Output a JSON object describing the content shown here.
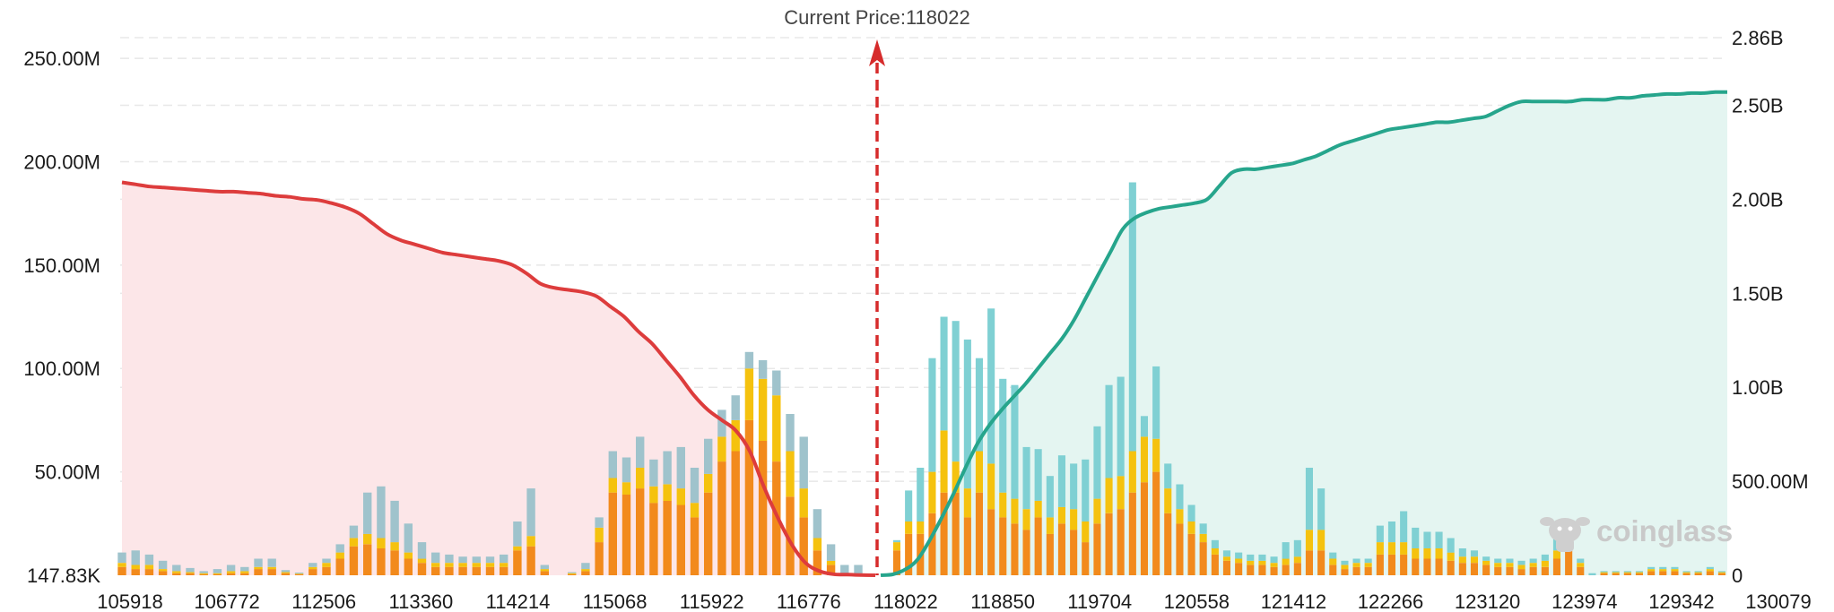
{
  "chart_data": {
    "type": "bar",
    "title": "Current Price:118022",
    "current_price": 118022,
    "x_tick_labels": [
      "105918",
      "106772",
      "112506",
      "113360",
      "114214",
      "115068",
      "115922",
      "116776",
      "118022",
      "118850",
      "119704",
      "120558",
      "121412",
      "122266",
      "123120",
      "123974",
      "129342",
      "130079"
    ],
    "y_left": {
      "tick_labels": [
        "147.83K",
        "50.00M",
        "100.00M",
        "150.00M",
        "200.00M",
        "250.00M"
      ],
      "ylim": [
        0,
        260000000
      ]
    },
    "y_right": {
      "tick_labels": [
        "0",
        "500.00M",
        "1.00B",
        "1.50B",
        "2.00B",
        "2.50B",
        "2.86B"
      ],
      "ylim": [
        0,
        2860000000
      ]
    },
    "grid": true,
    "colors": {
      "tier1": "#f28a1c",
      "tier2": "#f5c20e",
      "tier3": "#7fd0d3",
      "tier3_left": "#9fc3cc",
      "short_curve": "#dd3c3c",
      "short_fill": "#fce6e8",
      "long_curve": "#26a58c",
      "long_fill": "#e4f5f1",
      "marker": "#d62b2b"
    },
    "bar_series_names": [
      "tier1",
      "tier2",
      "tier3"
    ],
    "left_bars": {
      "tier1": [
        4,
        3,
        3,
        2,
        1,
        1,
        0.5,
        0.5,
        1,
        1,
        3,
        3,
        1,
        0.5,
        3,
        4,
        8,
        14,
        15,
        13,
        12,
        8,
        6,
        4,
        4,
        4,
        4,
        4,
        4,
        12,
        14,
        2,
        0,
        0.5,
        2,
        16,
        40,
        39,
        42,
        35,
        36,
        34,
        28,
        40,
        55,
        60,
        75,
        65,
        55,
        38,
        28,
        12,
        5,
        0,
        0
      ],
      "tier2": [
        2,
        2,
        2,
        1,
        1,
        0.5,
        0.5,
        0.5,
        1,
        1,
        1,
        1,
        0.5,
        0.3,
        1,
        2,
        3,
        4,
        5,
        5,
        4,
        3,
        2,
        2,
        2,
        2,
        2,
        2,
        2,
        2,
        5,
        1,
        0,
        0.5,
        1,
        7,
        7,
        6,
        10,
        8,
        8,
        8,
        7,
        9,
        12,
        15,
        25,
        30,
        32,
        22,
        14,
        6,
        2,
        0,
        0
      ],
      "tier3": [
        5,
        7,
        5,
        4,
        3,
        2,
        1,
        2,
        3,
        2,
        4,
        4,
        1,
        0.5,
        2,
        2,
        4,
        6,
        20,
        25,
        20,
        14,
        8,
        5,
        4,
        3,
        3,
        3,
        4,
        12,
        23,
        2,
        0,
        0.5,
        3,
        5,
        13,
        12,
        15,
        13,
        16,
        20,
        17,
        17,
        13,
        12,
        8,
        9,
        12,
        18,
        25,
        14,
        8,
        5,
        5
      ]
    },
    "right_bars": {
      "tier1": [
        12,
        20,
        20,
        30,
        40,
        40,
        28,
        40,
        32,
        28,
        25,
        22,
        28,
        20,
        25,
        22,
        16,
        25,
        30,
        32,
        40,
        45,
        50,
        30,
        25,
        20,
        16,
        10,
        7,
        6,
        5,
        5,
        4,
        5,
        6,
        12,
        12,
        5,
        3,
        4,
        4,
        10,
        10,
        10,
        8,
        8,
        8,
        7,
        6,
        6,
        5,
        4,
        4,
        3,
        4,
        4,
        8,
        12,
        4,
        0,
        1,
        1,
        1,
        1,
        2,
        2,
        2,
        1,
        1,
        2,
        1
      ],
      "tier2": [
        4,
        6,
        6,
        20,
        30,
        15,
        14,
        20,
        22,
        12,
        12,
        10,
        8,
        8,
        8,
        10,
        10,
        12,
        17,
        16,
        20,
        22,
        16,
        12,
        7,
        6,
        4,
        3,
        2,
        2,
        2,
        2,
        2,
        3,
        3,
        10,
        10,
        3,
        2,
        2,
        2,
        6,
        6,
        6,
        5,
        5,
        5,
        4,
        3,
        3,
        2,
        2,
        2,
        2,
        2,
        3,
        4,
        6,
        2,
        0,
        0.5,
        0.5,
        0.5,
        0.5,
        1,
        1,
        1,
        0.5,
        0.5,
        1,
        0.5
      ],
      "tier3": [
        1,
        15,
        26,
        55,
        55,
        68,
        72,
        45,
        75,
        55,
        55,
        30,
        25,
        20,
        25,
        22,
        30,
        35,
        45,
        48,
        130,
        10,
        35,
        12,
        12,
        8,
        5,
        4,
        3,
        3,
        3,
        3,
        3,
        8,
        8,
        30,
        20,
        3,
        2,
        2,
        2,
        8,
        10,
        15,
        10,
        8,
        8,
        7,
        4,
        3,
        2,
        2,
        2,
        2,
        2,
        3,
        9,
        8,
        2,
        1,
        0.5,
        0.5,
        0.5,
        0.5,
        1,
        1,
        1,
        0.5,
        0.5,
        1,
        0.5
      ]
    },
    "short_cumulative": [
      190,
      189,
      188,
      187.5,
      187,
      186.5,
      186,
      185.5,
      185.5,
      185,
      184.5,
      183.5,
      183,
      182,
      181.5,
      180,
      178,
      175,
      170,
      165,
      162,
      160,
      158,
      156,
      155,
      154,
      153,
      152,
      150,
      146,
      141,
      139,
      138,
      137,
      135,
      130,
      125,
      118,
      112,
      104,
      96,
      87,
      80,
      75,
      70,
      60,
      43,
      28,
      15,
      6,
      2,
      0.5,
      0.3,
      0.1,
      0
    ],
    "long_cumulative": [
      0,
      0.005,
      0.03,
      0.08,
      0.18,
      0.3,
      0.43,
      0.57,
      0.7,
      0.8,
      0.88,
      0.95,
      1.02,
      1.1,
      1.18,
      1.26,
      1.36,
      1.48,
      1.6,
      1.72,
      1.84,
      1.9,
      1.93,
      1.95,
      1.96,
      1.97,
      1.98,
      2,
      2.07,
      2.14,
      2.16,
      2.16,
      2.17,
      2.18,
      2.19,
      2.21,
      2.23,
      2.26,
      2.29,
      2.31,
      2.33,
      2.35,
      2.37,
      2.38,
      2.39,
      2.4,
      2.41,
      2.41,
      2.42,
      2.43,
      2.44,
      2.47,
      2.5,
      2.52,
      2.52,
      2.52,
      2.52,
      2.52,
      2.53,
      2.53,
      2.53,
      2.54,
      2.54,
      2.55,
      2.555,
      2.56,
      2.56,
      2.565,
      2.565,
      2.57,
      2.57
    ],
    "watermark": "coinglass"
  }
}
